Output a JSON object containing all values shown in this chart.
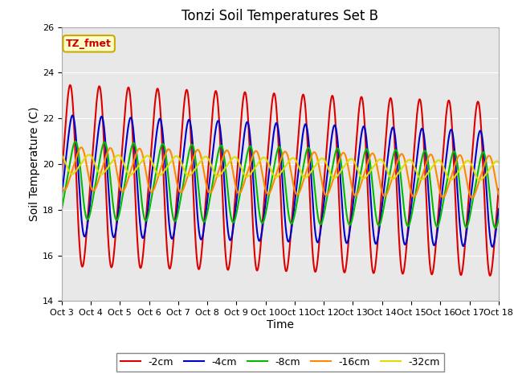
{
  "title": "Tonzi Soil Temperatures Set B",
  "xlabel": "Time",
  "ylabel": "Soil Temperature (C)",
  "ylim": [
    14,
    26
  ],
  "xlim": [
    0,
    15
  ],
  "xtick_labels": [
    "Oct 3",
    "Oct 4",
    "Oct 5",
    "Oct 6",
    "Oct 7",
    "Oct 8",
    "Oct 9",
    "Oct 10",
    "Oct 11",
    "Oct 12",
    "Oct 13",
    "Oct 14",
    "Oct 15",
    "Oct 16",
    "Oct 17",
    "Oct 18"
  ],
  "xtick_positions": [
    0,
    1,
    2,
    3,
    4,
    5,
    6,
    7,
    8,
    9,
    10,
    11,
    12,
    13,
    14,
    15
  ],
  "ytick_positions": [
    14,
    16,
    18,
    20,
    22,
    24,
    26
  ],
  "ytick_labels": [
    "14",
    "16",
    "18",
    "20",
    "22",
    "24",
    "26"
  ],
  "series": [
    {
      "label": "-2cm",
      "color": "#dd0000",
      "amplitude": 4.2,
      "mean": 19.5,
      "phase_shift": 0.0,
      "amp_decay": 0.003,
      "mean_trend": -0.04
    },
    {
      "label": "-4cm",
      "color": "#0000cc",
      "amplitude": 2.8,
      "mean": 19.5,
      "phase_shift": 0.08,
      "amp_decay": 0.003,
      "mean_trend": -0.04
    },
    {
      "label": "-8cm",
      "color": "#00bb00",
      "amplitude": 1.8,
      "mean": 19.3,
      "phase_shift": 0.18,
      "amp_decay": 0.002,
      "mean_trend": -0.03
    },
    {
      "label": "-16cm",
      "color": "#ff8800",
      "amplitude": 1.0,
      "mean": 19.8,
      "phase_shift": 0.38,
      "amp_decay": 0.001,
      "mean_trend": -0.025
    },
    {
      "label": "-32cm",
      "color": "#dddd00",
      "amplitude": 0.45,
      "mean": 20.0,
      "phase_shift": 0.65,
      "amp_decay": 0.0,
      "mean_trend": -0.02
    }
  ],
  "annotation_label": "TZ_fmet",
  "annotation_color": "#cc0000",
  "annotation_bg": "#ffffcc",
  "annotation_edge": "#ccaa00",
  "bg_color": "#e8e8e8",
  "grid_color": "#ffffff",
  "title_fontsize": 12,
  "axis_label_fontsize": 10,
  "tick_fontsize": 8,
  "legend_fontsize": 9,
  "linewidth": 1.5
}
